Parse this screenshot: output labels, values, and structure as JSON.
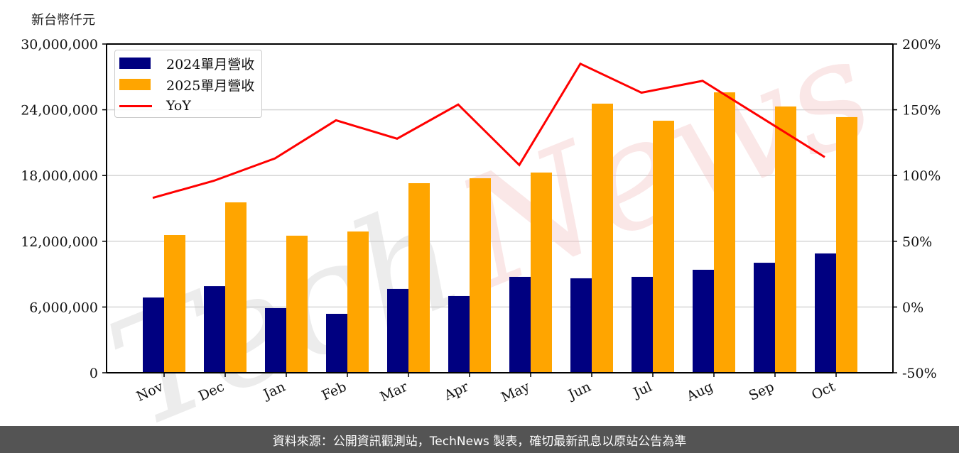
{
  "chart_data": {
    "type": "bar",
    "title": "",
    "unit_label": "新台幣仟元",
    "xlabel": "",
    "ylabel": "新台幣仟元",
    "y2label": "YoY",
    "categories": [
      "Nov",
      "Dec",
      "Jan",
      "Feb",
      "Mar",
      "Apr",
      "May",
      "Jun",
      "Jul",
      "Aug",
      "Sep",
      "Oct"
    ],
    "series": [
      {
        "name": "2024單月營收",
        "type": "bar",
        "color": "#000080",
        "axis": "left",
        "values": [
          6870000,
          7900000,
          5900000,
          5380000,
          7650000,
          7000000,
          8750000,
          8620000,
          8750000,
          9400000,
          10040000,
          10890000
        ]
      },
      {
        "name": "2025單月營收",
        "type": "bar",
        "color": "#FFA500",
        "axis": "left",
        "values": [
          12570000,
          15550000,
          12510000,
          12890000,
          17300000,
          17750000,
          18270000,
          24560000,
          23000000,
          25590000,
          24300000,
          23330000
        ]
      },
      {
        "name": "YoY",
        "type": "line",
        "color": "#FF0000",
        "axis": "right",
        "values": [
          83,
          96,
          113,
          142,
          128,
          154,
          108,
          185,
          163,
          172,
          143,
          114
        ]
      }
    ],
    "ylim": [
      0,
      30000000
    ],
    "y2lim": [
      -50,
      200
    ],
    "yticks": [
      "0",
      "6,000,000",
      "12,000,000",
      "18,000,000",
      "24,000,000",
      "30,000,000"
    ],
    "ytick_values": [
      0,
      6000000,
      12000000,
      18000000,
      24000000,
      30000000
    ],
    "y2ticks": [
      "-50%",
      "0%",
      "50%",
      "100%",
      "150%",
      "200%"
    ],
    "y2tick_values": [
      -50,
      0,
      50,
      100,
      150,
      200
    ],
    "grid": true,
    "legend_position": "upper left",
    "watermark": "TechNews"
  },
  "footer": {
    "source_text": "資料來源：公開資訊觀測站，TechNews 製表，確切最新訊息以原站公告為準"
  }
}
